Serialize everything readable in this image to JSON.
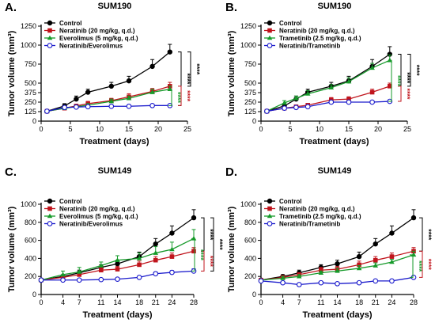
{
  "chart_data": [
    {
      "type": "line",
      "panel": "A.",
      "title": "SUM190",
      "xlabel": "Treatment (days)",
      "ylabel": "Tumor volume (mm³)",
      "xlim": [
        0,
        25
      ],
      "ylim": [
        0,
        1250
      ],
      "xticks": [
        0,
        5,
        10,
        15,
        20,
        25
      ],
      "yticks": [
        0,
        125,
        250,
        375,
        500,
        750,
        1000,
        1250
      ],
      "ytick_labels": [
        "0",
        "125",
        "250",
        "375",
        "500",
        "750",
        "1000",
        "1250"
      ],
      "legend_position": "top-left",
      "series": [
        {
          "name": "Control",
          "color": "#000000",
          "marker": "circle-filled",
          "x": [
            1,
            4,
            6,
            8,
            12,
            15,
            19,
            22
          ],
          "y": [
            130,
            200,
            290,
            380,
            460,
            530,
            720,
            910
          ],
          "err": [
            10,
            30,
            40,
            40,
            50,
            60,
            90,
            100
          ]
        },
        {
          "name": "Neratinib (20 mg/kg, q.d.)",
          "color": "#c0141c",
          "marker": "square-filled",
          "x": [
            1,
            4,
            6,
            8,
            12,
            15,
            19,
            22
          ],
          "y": [
            130,
            170,
            200,
            230,
            270,
            320,
            390,
            460
          ],
          "err": [
            10,
            20,
            20,
            30,
            30,
            40,
            40,
            50
          ]
        },
        {
          "name": "Everolimus (5 mg/kg, q.d.)",
          "color": "#169a2a",
          "marker": "triangle-filled",
          "x": [
            1,
            4,
            6,
            8,
            12,
            15,
            19,
            22
          ],
          "y": [
            130,
            170,
            190,
            210,
            260,
            300,
            380,
            420
          ],
          "err": [
            10,
            20,
            20,
            20,
            30,
            30,
            40,
            40
          ]
        },
        {
          "name": "Neratinib/Everolimus",
          "color": "#1a1acc",
          "marker": "circle-open",
          "x": [
            1,
            4,
            6,
            8,
            12,
            15,
            19,
            22
          ],
          "y": [
            130,
            180,
            185,
            190,
            195,
            195,
            205,
            205
          ],
          "err": [
            10,
            15,
            15,
            15,
            15,
            15,
            15,
            15
          ]
        }
      ],
      "significance": [
        {
          "from": "Control",
          "to": "Neratinib/Everolimus",
          "label": "****",
          "color": "#000000"
        },
        {
          "from": "Control",
          "to": "Neratinib (20 mg/kg, q.d.)",
          "label": "****",
          "color": "#000000"
        },
        {
          "from": "Neratinib (20 mg/kg, q.d.)",
          "to": "Neratinib/Everolimus",
          "label": "****",
          "color": "#c0141c"
        },
        {
          "from": "Everolimus (5 mg/kg, q.d.)",
          "to": "Neratinib/Everolimus",
          "label": "****",
          "color": "#169a2a"
        }
      ]
    },
    {
      "type": "line",
      "panel": "B.",
      "title": "SUM190",
      "xlabel": "Treatment (days)",
      "ylabel": "Tumor volume (mm³)",
      "xlim": [
        0,
        25
      ],
      "ylim": [
        0,
        1250
      ],
      "xticks": [
        0,
        5,
        10,
        15,
        20,
        25
      ],
      "yticks": [
        0,
        125,
        250,
        375,
        500,
        750,
        1000,
        1250
      ],
      "ytick_labels": [
        "0",
        "125",
        "250",
        "375",
        "500",
        "750",
        "1000",
        "1250"
      ],
      "legend_position": "top-left",
      "series": [
        {
          "name": "Control",
          "color": "#000000",
          "marker": "circle-filled",
          "x": [
            1,
            4,
            6,
            8,
            12,
            15,
            19,
            22
          ],
          "y": [
            130,
            200,
            290,
            380,
            460,
            530,
            720,
            880
          ],
          "err": [
            10,
            30,
            40,
            40,
            50,
            60,
            90,
            100
          ]
        },
        {
          "name": "Neratinib (20 mg/kg, q.d.)",
          "color": "#c0141c",
          "marker": "square-filled",
          "x": [
            1,
            4,
            6,
            8,
            12,
            15,
            19,
            22
          ],
          "y": [
            130,
            170,
            190,
            210,
            280,
            290,
            380,
            460
          ],
          "err": [
            10,
            20,
            20,
            20,
            30,
            30,
            40,
            40
          ]
        },
        {
          "name": "Trametinib (2.5 mg/kg, q.d.)",
          "color": "#169a2a",
          "marker": "triangle-filled",
          "x": [
            1,
            4,
            6,
            8,
            12,
            15,
            19,
            22
          ],
          "y": [
            130,
            240,
            300,
            360,
            440,
            520,
            700,
            800
          ],
          "err": [
            10,
            30,
            30,
            40,
            40,
            50,
            60,
            70
          ]
        },
        {
          "name": "Neratinib/Trametinib",
          "color": "#1a1acc",
          "marker": "circle-open",
          "x": [
            1,
            4,
            6,
            8,
            12,
            15,
            19,
            22
          ],
          "y": [
            130,
            170,
            180,
            190,
            250,
            250,
            250,
            260
          ],
          "err": [
            10,
            15,
            15,
            15,
            15,
            15,
            15,
            15
          ]
        }
      ],
      "significance": [
        {
          "from": "Control",
          "to": "Neratinib/Trametinib",
          "label": "****",
          "color": "#000000"
        },
        {
          "from": "Control",
          "to": "Neratinib (20 mg/kg, q.d.)",
          "label": "****",
          "color": "#000000"
        },
        {
          "from": "Neratinib (20 mg/kg, q.d.)",
          "to": "Neratinib/Trametinib",
          "label": "****",
          "color": "#c0141c"
        },
        {
          "from": "Trametinib (2.5 mg/kg, q.d.)",
          "to": "Neratinib/Trametinib",
          "label": "****",
          "color": "#169a2a"
        }
      ]
    },
    {
      "type": "line",
      "panel": "C.",
      "title": "SUM149",
      "xlabel": "Treatment (days)",
      "ylabel": "Tumor volume (mm³)",
      "xlim": [
        0,
        28
      ],
      "ylim": [
        0,
        1000
      ],
      "xticks": [
        0,
        4,
        7,
        11,
        14,
        18,
        21,
        24,
        28
      ],
      "yticks": [
        0,
        200,
        400,
        600,
        800,
        1000
      ],
      "ytick_labels": [
        "0",
        "200",
        "400",
        "600",
        "800",
        "1000"
      ],
      "legend_position": "top-left",
      "series": [
        {
          "name": "Control",
          "color": "#000000",
          "marker": "circle-filled",
          "x": [
            0,
            4,
            7,
            11,
            14,
            18,
            21,
            24,
            28
          ],
          "y": [
            160,
            200,
            240,
            300,
            340,
            420,
            560,
            680,
            850
          ],
          "err": [
            10,
            20,
            30,
            30,
            40,
            50,
            60,
            80,
            90
          ]
        },
        {
          "name": "Neratinib (20 mg/kg, q.d.)",
          "color": "#c0141c",
          "marker": "square-filled",
          "x": [
            0,
            4,
            7,
            11,
            14,
            18,
            21,
            24,
            28
          ],
          "y": [
            160,
            190,
            220,
            270,
            280,
            330,
            380,
            420,
            480
          ],
          "err": [
            10,
            20,
            20,
            30,
            30,
            40,
            40,
            40,
            40
          ]
        },
        {
          "name": "Everolimus (5 mg/kg, q.d.)",
          "color": "#169a2a",
          "marker": "triangle-filled",
          "x": [
            0,
            4,
            7,
            11,
            14,
            18,
            21,
            24,
            28
          ],
          "y": [
            160,
            220,
            250,
            320,
            380,
            400,
            460,
            500,
            620
          ],
          "err": [
            10,
            40,
            50,
            40,
            50,
            60,
            70,
            80,
            100
          ]
        },
        {
          "name": "Neratinib/Everolimus",
          "color": "#1a1acc",
          "marker": "circle-open",
          "x": [
            0,
            4,
            7,
            11,
            14,
            18,
            21,
            24,
            28
          ],
          "y": [
            160,
            160,
            160,
            165,
            170,
            190,
            230,
            245,
            260
          ],
          "err": [
            10,
            10,
            10,
            10,
            10,
            15,
            20,
            20,
            25
          ]
        }
      ],
      "significance": [
        {
          "from": "Control",
          "to": "Neratinib (20 mg/kg, q.d.)",
          "label": "****",
          "color": "#000000"
        },
        {
          "from": "Control",
          "to": "Neratinib/Everolimus",
          "label": "****",
          "color": "#000000"
        },
        {
          "from": "Neratinib (20 mg/kg, q.d.)",
          "to": "Neratinib/Everolimus",
          "label": "****",
          "color": "#c0141c"
        },
        {
          "from": "Everolimus (5 mg/kg, q.d.)",
          "to": "Neratinib/Everolimus",
          "label": "****",
          "color": "#169a2a"
        }
      ]
    },
    {
      "type": "line",
      "panel": "D.",
      "title": "SUM149",
      "xlabel": "Treatment (days)",
      "ylabel": "Tumor volume (mm³)",
      "xlim": [
        0,
        28
      ],
      "ylim": [
        0,
        1000
      ],
      "xticks": [
        0,
        4,
        7,
        11,
        14,
        18,
        21,
        24,
        28
      ],
      "yticks": [
        0,
        200,
        400,
        600,
        800,
        1000
      ],
      "ytick_labels": [
        "0",
        "200",
        "400",
        "600",
        "800",
        "1000"
      ],
      "legend_position": "top-left",
      "series": [
        {
          "name": "Control",
          "color": "#000000",
          "marker": "circle-filled",
          "x": [
            0,
            4,
            7,
            11,
            14,
            18,
            21,
            24,
            28
          ],
          "y": [
            160,
            200,
            240,
            300,
            340,
            420,
            560,
            680,
            850
          ],
          "err": [
            10,
            20,
            30,
            30,
            40,
            50,
            60,
            80,
            90
          ]
        },
        {
          "name": "Neratinib (20 mg/kg, q.d.)",
          "color": "#c0141c",
          "marker": "square-filled",
          "x": [
            0,
            4,
            7,
            11,
            14,
            18,
            21,
            24,
            28
          ],
          "y": [
            160,
            190,
            220,
            270,
            280,
            330,
            380,
            420,
            480
          ],
          "err": [
            10,
            20,
            20,
            30,
            30,
            40,
            40,
            40,
            40
          ]
        },
        {
          "name": "Trametinib (2.5 mg/kg, q.d.)",
          "color": "#169a2a",
          "marker": "triangle-filled",
          "x": [
            0,
            4,
            7,
            11,
            14,
            18,
            21,
            24,
            28
          ],
          "y": [
            160,
            180,
            200,
            240,
            260,
            290,
            320,
            360,
            440
          ],
          "err": [
            10,
            20,
            20,
            20,
            30,
            30,
            30,
            30,
            40
          ]
        },
        {
          "name": "Neratinib/Trametinib",
          "color": "#1a1acc",
          "marker": "circle-open",
          "x": [
            0,
            4,
            7,
            11,
            14,
            18,
            21,
            24,
            28
          ],
          "y": [
            150,
            130,
            110,
            130,
            120,
            130,
            150,
            150,
            190
          ],
          "err": [
            10,
            10,
            10,
            10,
            10,
            10,
            10,
            10,
            15
          ]
        }
      ],
      "significance": [
        {
          "from": "Control",
          "to": "Neratinib (20 mg/kg, q.d.)",
          "label": "****",
          "color": "#000000"
        },
        {
          "from": "Neratinib (20 mg/kg, q.d.)",
          "to": "Neratinib/Trametinib",
          "label": "****",
          "color": "#c0141c"
        },
        {
          "from": "Trametinib (2.5 mg/kg, q.d.)",
          "to": "Neratinib/Trametinib",
          "label": "****",
          "color": "#169a2a"
        }
      ]
    }
  ]
}
